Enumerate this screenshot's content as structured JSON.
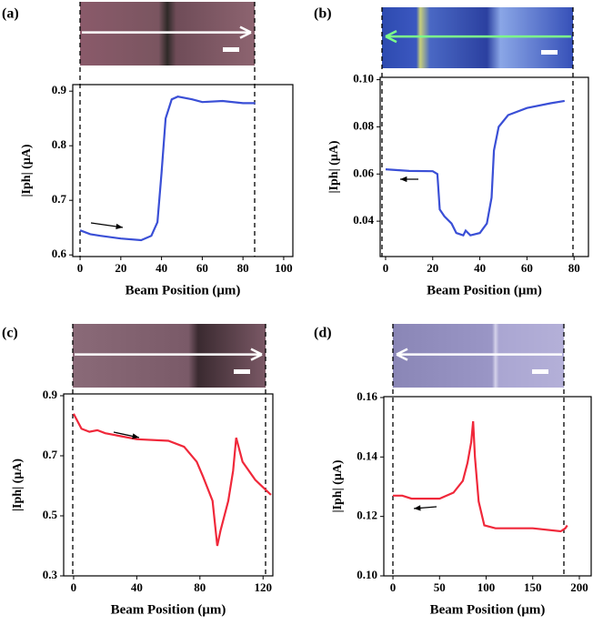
{
  "chart_data": [
    {
      "type": "line",
      "panel_label": "(a)",
      "xlabel": "Beam Position (μm)",
      "ylabel": "|Iph| (μA)",
      "xlim": [
        -3.6,
        104.5
      ],
      "xticks": [
        0,
        20,
        40,
        60,
        80,
        100
      ],
      "ylim": [
        0.597,
        0.912
      ],
      "yticks": [
        0.6,
        0.7,
        0.8,
        0.9
      ],
      "series": [
        {
          "color": "#3a4fd6",
          "x": [
            0,
            5,
            10,
            20,
            30,
            35,
            38,
            40,
            42,
            45,
            48,
            55,
            60,
            70,
            80,
            86
          ],
          "values": [
            0.645,
            0.638,
            0.635,
            0.63,
            0.627,
            0.635,
            0.66,
            0.75,
            0.85,
            0.885,
            0.89,
            0.885,
            0.88,
            0.882,
            0.878,
            0.878
          ]
        }
      ]
    },
    {
      "type": "line",
      "panel_label": "(b)",
      "xlabel": "Beam Position (μm)",
      "ylabel": "|Iph| (μA)",
      "xlim": [
        -2.3,
        86.1
      ],
      "xticks": [
        0,
        20,
        40,
        60,
        80
      ],
      "ylim": [
        0.025,
        0.101
      ],
      "yticks": [
        0.04,
        0.06,
        0.08,
        {
          "value": 0.1,
          "label": "0.10"
        }
      ],
      "series": [
        {
          "color": "#3a4fd6",
          "x": [
            0,
            10,
            20,
            22,
            23,
            25,
            28,
            30,
            33,
            34,
            36,
            40,
            43,
            45,
            46,
            48,
            52,
            60,
            70,
            76
          ],
          "values": [
            0.062,
            0.0613,
            0.0612,
            0.06,
            0.045,
            0.042,
            0.039,
            0.035,
            0.034,
            0.036,
            0.034,
            0.035,
            0.039,
            0.05,
            0.07,
            0.08,
            0.085,
            0.088,
            0.09,
            0.091
          ]
        }
      ]
    },
    {
      "type": "line",
      "panel_label": "(c)",
      "xlabel": "Beam Position (μm)",
      "ylabel": "|Iph| (μA)",
      "xlim": [
        -6.3,
        126.2
      ],
      "xticks": [
        0,
        40,
        80,
        120
      ],
      "ylim": [
        0.3,
        0.906
      ],
      "yticks": [
        0.3,
        0.5,
        0.7,
        0.9
      ],
      "series": [
        {
          "color": "#f0283a",
          "x": [
            0,
            5,
            10,
            15,
            20,
            30,
            40,
            60,
            70,
            78,
            82,
            88,
            91,
            93,
            98,
            101,
            103,
            107,
            115,
            125
          ],
          "values": [
            0.84,
            0.79,
            0.78,
            0.785,
            0.775,
            0.765,
            0.755,
            0.75,
            0.73,
            0.68,
            0.63,
            0.55,
            0.4,
            0.45,
            0.55,
            0.65,
            0.76,
            0.68,
            0.62,
            0.57
          ]
        }
      ]
    },
    {
      "type": "line",
      "panel_label": "(d)",
      "xlabel": "Beam Position (μm)",
      "ylabel": "|Iph| (μA)",
      "xlim": [
        -9.8,
        212.7
      ],
      "xticks": [
        0,
        50,
        100,
        150,
        200
      ],
      "ylim": [
        0.1,
        0.1603
      ],
      "yticks": [
        {
          "value": 0.1,
          "label": "0.10"
        },
        0.12,
        0.14,
        0.16
      ],
      "series": [
        {
          "color": "#f0283a",
          "x": [
            0,
            10,
            20,
            50,
            65,
            75,
            80,
            84,
            86,
            88,
            92,
            98,
            110,
            150,
            180,
            185,
            187
          ],
          "values": [
            0.127,
            0.127,
            0.126,
            0.126,
            0.128,
            0.132,
            0.138,
            0.145,
            0.152,
            0.14,
            0.125,
            0.117,
            0.116,
            0.116,
            0.115,
            0.116,
            0.117
          ]
        }
      ]
    }
  ]
}
